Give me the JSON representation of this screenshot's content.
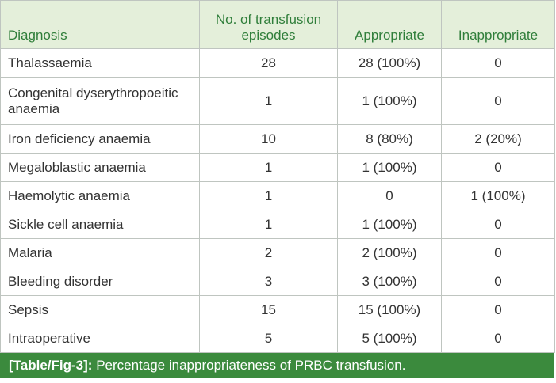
{
  "table": {
    "headers": {
      "diagnosis": "Diagnosis",
      "episodes": "No. of transfusion episodes",
      "appropriate": "Appropriate",
      "inappropriate": "Inappropriate"
    },
    "rows": [
      {
        "diagnosis": "Thalassaemia",
        "episodes": "28",
        "appropriate": "28 (100%)",
        "inappropriate": "0"
      },
      {
        "diagnosis": "Congenital dyserythropoeitic anaemia",
        "episodes": "1",
        "appropriate": "1 (100%)",
        "inappropriate": "0"
      },
      {
        "diagnosis": "Iron deficiency anaemia",
        "episodes": "10",
        "appropriate": "8 (80%)",
        "inappropriate": "2 (20%)"
      },
      {
        "diagnosis": "Megaloblastic anaemia",
        "episodes": "1",
        "appropriate": "1 (100%)",
        "inappropriate": "0"
      },
      {
        "diagnosis": "Haemolytic anaemia",
        "episodes": "1",
        "appropriate": "0",
        "inappropriate": "1 (100%)"
      },
      {
        "diagnosis": "Sickle cell anaemia",
        "episodes": "1",
        "appropriate": "1 (100%)",
        "inappropriate": "0"
      },
      {
        "diagnosis": "Malaria",
        "episodes": "2",
        "appropriate": "2 (100%)",
        "inappropriate": "0"
      },
      {
        "diagnosis": "Bleeding disorder",
        "episodes": "3",
        "appropriate": "3 (100%)",
        "inappropriate": "0"
      },
      {
        "diagnosis": "Sepsis",
        "episodes": "15",
        "appropriate": "15 (100%)",
        "inappropriate": "0"
      },
      {
        "diagnosis": "Intraoperative",
        "episodes": "5",
        "appropriate": "5 (100%)",
        "inappropriate": "0"
      }
    ]
  },
  "caption": {
    "tag": "[Table/Fig-3]:",
    "text": "Percentage inappropriateness of PRBC transfusion."
  },
  "colors": {
    "header_bg": "#e4efda",
    "header_text": "#2f7e3a",
    "caption_bg": "#3b8a3d",
    "border": "#bfc5c0"
  }
}
